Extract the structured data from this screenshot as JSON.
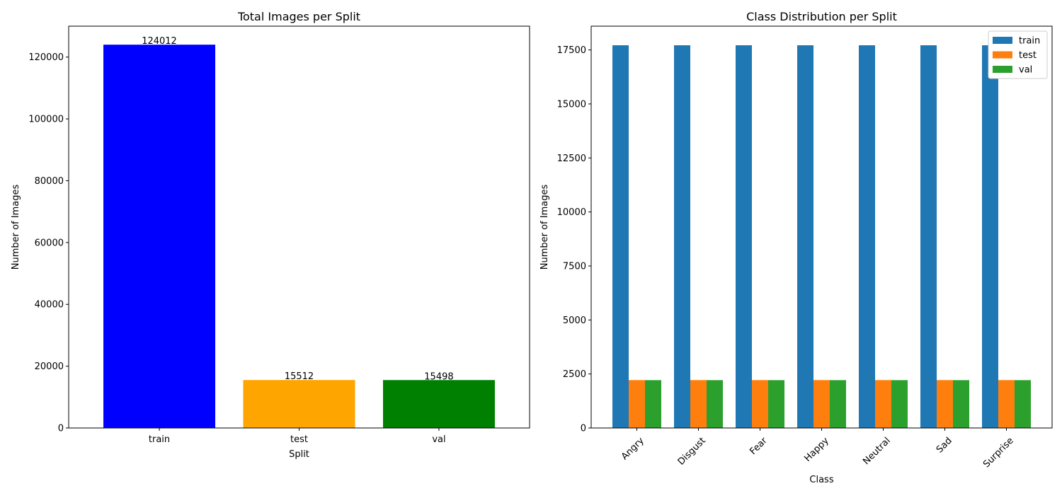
{
  "chart_data": [
    {
      "type": "bar",
      "title": "Total Images per Split",
      "xlabel": "Split",
      "ylabel": "Number of Images",
      "categories": [
        "train",
        "test",
        "val"
      ],
      "values": [
        124012,
        15512,
        15498
      ],
      "value_labels": [
        "124012",
        "15512",
        "15498"
      ],
      "colors": [
        "#0000ff",
        "#ffa500",
        "#008000"
      ],
      "ylim": [
        0,
        130000
      ],
      "yticks": [
        0,
        20000,
        40000,
        60000,
        80000,
        100000,
        120000
      ],
      "ytick_labels": [
        "0",
        "20000",
        "40000",
        "60000",
        "80000",
        "100000",
        "120000"
      ],
      "grid": false
    },
    {
      "type": "bar",
      "title": "Class Distribution per Split",
      "xlabel": "Class",
      "ylabel": "Number of Images",
      "categories": [
        "Angry",
        "Disgust",
        "Fear",
        "Happy",
        "Neutral",
        "Sad",
        "Surprise"
      ],
      "series": [
        {
          "name": "train",
          "color": "#1f77b4",
          "values": [
            17716,
            17716,
            17716,
            17716,
            17716,
            17716,
            17716
          ]
        },
        {
          "name": "test",
          "color": "#ff7f0e",
          "values": [
            2216,
            2216,
            2216,
            2216,
            2216,
            2216,
            2216
          ]
        },
        {
          "name": "val",
          "color": "#2ca02c",
          "values": [
            2214,
            2214,
            2214,
            2214,
            2214,
            2214,
            2214
          ]
        }
      ],
      "ylim": [
        0,
        18600
      ],
      "yticks": [
        0,
        2500,
        5000,
        7500,
        10000,
        12500,
        15000,
        17500
      ],
      "ytick_labels": [
        "0",
        "2500",
        "5000",
        "7500",
        "10000",
        "12500",
        "15000",
        "17500"
      ],
      "xtick_rotation": 45,
      "legend": "top-right",
      "grid": false
    }
  ]
}
